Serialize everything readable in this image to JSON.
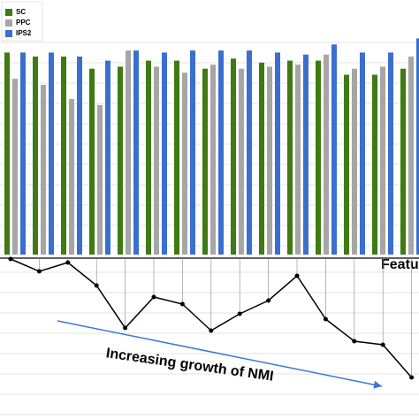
{
  "chart_data": [
    {
      "type": "bar",
      "series": [
        {
          "name": "SC",
          "color": "#3f7a12",
          "values": [
            100,
            98,
            98,
            92,
            93,
            96,
            96,
            92,
            97,
            95,
            96,
            96,
            89,
            89,
            92
          ]
        },
        {
          "name": "PPC",
          "color": "#a6a6a6",
          "values": [
            87,
            84,
            77,
            74,
            101,
            93,
            90,
            94,
            92,
            93,
            94,
            99,
            92,
            93,
            98
          ]
        },
        {
          "name": "IPS2",
          "color": "#3a6fd0",
          "values": [
            100,
            100,
            98,
            96,
            101,
            100,
            101,
            101,
            101,
            100,
            99,
            104,
            100,
            100,
            107
          ]
        }
      ],
      "ylim": [
        0,
        126
      ],
      "grid": true,
      "legend": "upper left"
    },
    {
      "type": "line",
      "color": "#000000",
      "values": [
        0,
        -14,
        -4,
        -30,
        -78,
        -43,
        -51,
        -81,
        -62,
        -47,
        -19,
        -68,
        -93,
        -97,
        -134
      ],
      "ylim": [
        -180,
        0
      ],
      "annotations": [
        "Featu",
        "Increasing growth of NMI"
      ]
    }
  ]
}
